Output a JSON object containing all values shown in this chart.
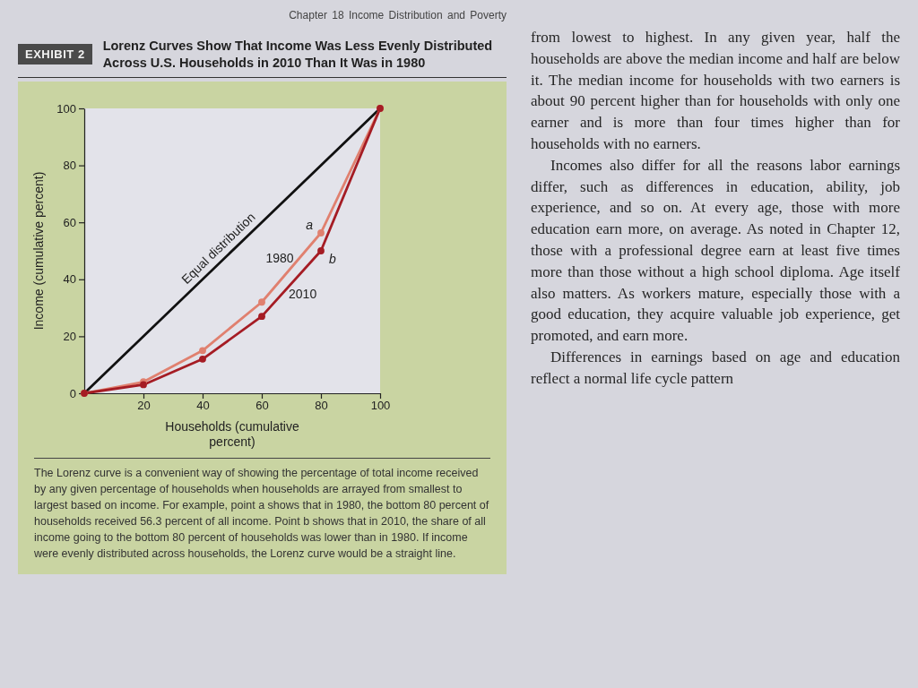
{
  "chart_data": {
    "type": "line",
    "title": "Lorenz Curves Show That Income Was Less Evenly Distributed Across U.S. Households in 2010 Than It Was in 1980",
    "xlabel": "Households (cumulative percent)",
    "ylabel": "Income (cumulative percent)",
    "x": [
      0,
      20,
      40,
      60,
      80,
      100
    ],
    "series": [
      {
        "name": "Equal distribution",
        "color": "#111111",
        "x": [
          0,
          100
        ],
        "values": [
          0,
          100
        ],
        "marker": "none"
      },
      {
        "name": "1980",
        "color": "#e0806f",
        "values": [
          0,
          4,
          15,
          32,
          56.3,
          100
        ]
      },
      {
        "name": "2010",
        "color": "#a51c24",
        "values": [
          0,
          3,
          12,
          27,
          50,
          100
        ]
      }
    ],
    "xlim": [
      0,
      100
    ],
    "ylim": [
      0,
      100
    ],
    "xticks": [
      20,
      40,
      60,
      80,
      100
    ],
    "yticks": [
      0,
      20,
      40,
      60,
      80,
      100
    ],
    "marker": "circle",
    "annotations": [
      "Chapter 18 Income Distribution and Poverty",
      "EXHIBIT 2",
      "The Lorenz curve is a convenient way of showing the percentage of total income received by any given percentage of households when households are arrayed from smallest to largest based on income. For example, point a shows that in 1980, the bottom 80 percent of households received 56.3 percent of all income. Point b shows that in 2010, the share of all income going to the bottom 80 percent of households was lower than in 1980. If income were evenly distributed across households, the Lorenz curve would be a straight line.",
      "from lowest to highest. In any given year, half the households are above the median income and half are below it. The median income for households with two earners is about 90 percent higher than for households with only one earner and is more than four times higher than for households with no earners.",
      "Incomes also differ for all the reasons labor earnings differ, such as differences in education, ability, job experience, and so on. At every age, those with more education earn more, on average. As noted in Chapter 12, those with a professional degree earn at least five times more than those without a high school diploma. Age itself also matters. As workers mature, especially those with a good education, they acquire valuable job experience, get promoted, and earn more.",
      "Differences in earnings based on age and education reflect a normal life cycle pattern",
      {
        "text": "a",
        "x": 80,
        "y": 56.3
      },
      {
        "text": "b",
        "x": 80,
        "y": 50
      }
    ]
  }
}
